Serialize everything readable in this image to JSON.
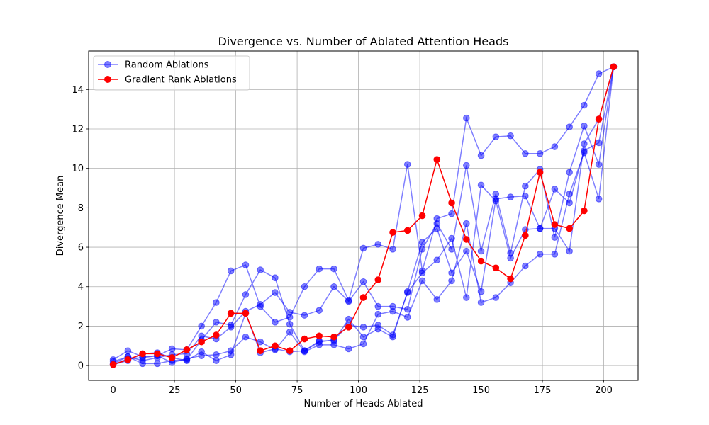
{
  "chart_data": {
    "type": "line",
    "title": "Divergence vs. Number of Ablated Attention Heads",
    "xlabel": "Number of Heads Ablated",
    "ylabel": "Divergence Mean",
    "xlim": [
      -10,
      214
    ],
    "ylim": [
      -0.75,
      15.95
    ],
    "xticks": [
      0,
      25,
      50,
      75,
      100,
      125,
      150,
      175,
      200
    ],
    "yticks": [
      0,
      2,
      4,
      6,
      8,
      10,
      12,
      14
    ],
    "grid": true,
    "legend_position": "top-left",
    "x": [
      0,
      6,
      12,
      18,
      24,
      30,
      36,
      42,
      48,
      54,
      60,
      66,
      72,
      78,
      84,
      90,
      96,
      102,
      108,
      114,
      120,
      126,
      132,
      138,
      144,
      150,
      156,
      162,
      168,
      174,
      180,
      186,
      192,
      198,
      204
    ],
    "series": [
      {
        "name": "Random Ablations",
        "color": "#0000ff",
        "opacity": 0.5,
        "lines": [
          [
            0.3,
            0.75,
            0.45,
            0.5,
            0.85,
            0.8,
            2.0,
            3.2,
            4.8,
            5.1,
            3.0,
            2.2,
            2.45,
            4.0,
            4.9,
            4.9,
            3.3,
            5.95,
            6.15,
            5.9,
            10.2,
            4.8,
            7.45,
            7.7,
            12.55,
            10.65,
            11.6,
            11.65,
            10.75,
            10.75,
            11.1,
            12.1,
            13.2,
            14.8,
            15.15
          ],
          [
            0.2,
            0.45,
            0.25,
            0.4,
            0.55,
            0.6,
            1.5,
            1.35,
            1.95,
            2.75,
            3.1,
            3.7,
            2.7,
            2.55,
            2.8,
            4.0,
            3.25,
            4.25,
            3.0,
            3.0,
            2.85,
            5.9,
            7.2,
            5.9,
            10.15,
            5.8,
            8.7,
            5.7,
            9.1,
            9.95,
            6.5,
            9.8,
            12.15,
            10.2,
            15.15
          ],
          [
            0.1,
            0.45,
            0.1,
            0.1,
            0.25,
            0.3,
            1.3,
            2.2,
            2.05,
            3.6,
            4.85,
            4.45,
            2.1,
            0.75,
            1.25,
            1.25,
            2.35,
            1.45,
            1.85,
            1.45,
            3.75,
            6.25,
            6.95,
            4.7,
            5.8,
            3.75,
            8.45,
            8.55,
            8.6,
            6.95,
            8.95,
            8.25,
            10.9,
            11.3,
            15.15
          ],
          [
            0.05,
            0.35,
            0.4,
            0.5,
            0.15,
            0.35,
            0.5,
            0.55,
            0.75,
            1.45,
            1.2,
            0.8,
            1.7,
            0.7,
            1.05,
            1.05,
            0.85,
            1.1,
            2.6,
            2.75,
            2.45,
            4.3,
            3.35,
            4.3,
            7.2,
            3.2,
            3.45,
            4.2,
            5.05,
            5.65,
            5.65,
            8.7,
            10.8,
            8.45,
            15.15
          ],
          [
            0.05,
            0.25,
            0.6,
            0.65,
            0.4,
            0.25,
            0.7,
            0.25,
            0.55,
            2.65,
            0.65,
            0.85,
            0.7,
            0.75,
            1.2,
            1.3,
            2.05,
            1.95,
            2.05,
            1.55,
            3.7,
            4.7,
            5.35,
            6.45,
            3.45,
            9.15,
            8.35,
            5.45,
            6.9,
            6.95,
            6.95,
            5.8,
            11.25,
            12.5,
            15.15
          ]
        ]
      },
      {
        "name": "Gradient Rank Ablations",
        "color": "#ff0000",
        "opacity": 1.0,
        "values": [
          0.05,
          0.3,
          0.6,
          0.6,
          0.4,
          0.8,
          1.2,
          1.55,
          2.65,
          2.65,
          0.75,
          1.0,
          0.75,
          1.35,
          1.5,
          1.45,
          1.95,
          3.45,
          4.35,
          6.75,
          6.85,
          7.6,
          10.45,
          8.25,
          6.4,
          5.3,
          4.95,
          4.4,
          6.6,
          9.8,
          7.15,
          6.95,
          7.85,
          12.5,
          15.15
        ]
      }
    ]
  }
}
